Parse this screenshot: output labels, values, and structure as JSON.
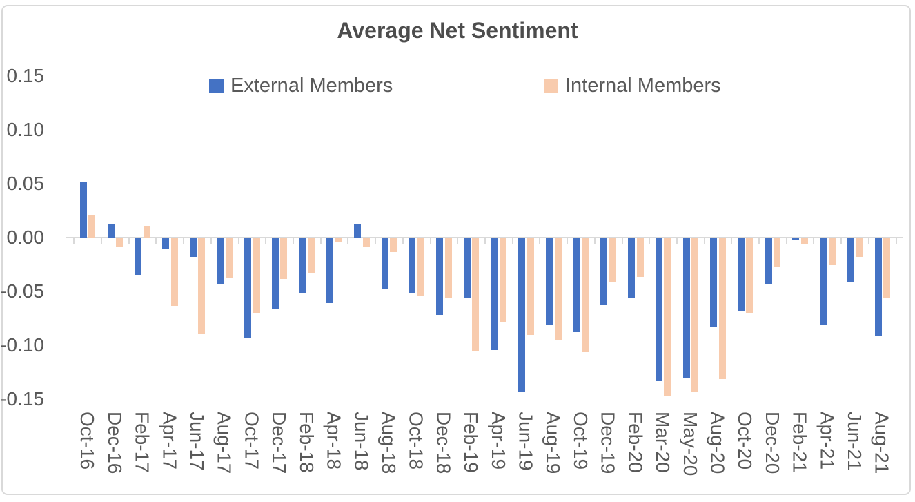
{
  "chart_data": {
    "type": "bar",
    "title": "Average Net Sentiment",
    "legend_position": "top",
    "grid": false,
    "y_axis": {
      "min": -0.15,
      "max": 0.15,
      "tick_labels": [
        "0.15",
        "0.10",
        "0.05",
        "0.00",
        "-0.05",
        "-0.10",
        "-0.15"
      ],
      "tick_values": [
        0.15,
        0.1,
        0.05,
        0.0,
        -0.05,
        -0.1,
        -0.15
      ]
    },
    "categories": [
      "Oct-16",
      "Dec-16",
      "Feb-17",
      "Apr-17",
      "Jun-17",
      "Aug-17",
      "Oct-17",
      "Dec-17",
      "Feb-18",
      "Apr-18",
      "Jun-18",
      "Aug-18",
      "Oct-18",
      "Dec-18",
      "Feb-19",
      "Apr-19",
      "Jun-19",
      "Aug-19",
      "Oct-19",
      "Dec-19",
      "Feb-20",
      "Mar-20",
      "May-20",
      "Aug-20",
      "Oct-20",
      "Dec-20",
      "Feb-21",
      "Apr-21",
      "Jun-21",
      "Aug-21"
    ],
    "series": [
      {
        "name": "External Members",
        "color": "#4472C4",
        "values": [
          0.052,
          0.013,
          -0.034,
          -0.01,
          -0.017,
          -0.042,
          -0.092,
          -0.066,
          -0.051,
          -0.06,
          0.013,
          -0.047,
          -0.051,
          -0.071,
          -0.056,
          -0.104,
          -0.143,
          -0.08,
          -0.087,
          -0.062,
          -0.055,
          -0.133,
          -0.13,
          -0.082,
          -0.068,
          -0.043,
          -0.002,
          -0.08,
          -0.041,
          -0.091
        ]
      },
      {
        "name": "Internal Members",
        "color": "#F8CBAD",
        "values": [
          0.021,
          -0.008,
          0.01,
          -0.063,
          -0.089,
          -0.037,
          -0.07,
          -0.038,
          -0.033,
          -0.003,
          -0.008,
          -0.013,
          -0.053,
          -0.055,
          -0.105,
          -0.078,
          -0.09,
          -0.095,
          -0.106,
          -0.041,
          -0.036,
          -0.147,
          -0.142,
          -0.131,
          -0.069,
          -0.027,
          -0.006,
          -0.025,
          -0.017,
          -0.055
        ]
      }
    ],
    "colors": {
      "axis_line": "#d9d9d9",
      "label_text": "#595959",
      "title_text": "#4d4d4d"
    }
  }
}
